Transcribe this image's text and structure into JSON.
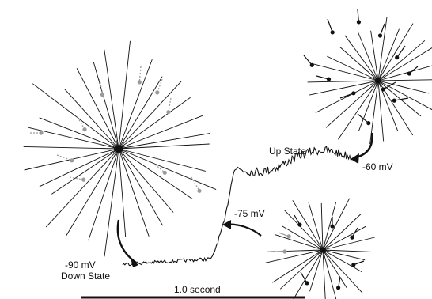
{
  "labels": {
    "up_state": "Up State",
    "minus60": "-60 mV",
    "minus75": "-75 mV",
    "minus90": "-90 mV",
    "down_state": "Down State",
    "scale_bar": "1.0 second"
  },
  "colors": {
    "ink": "#111111",
    "grey_synapse": "#9a9a9a",
    "background": "#ffffff"
  }
}
